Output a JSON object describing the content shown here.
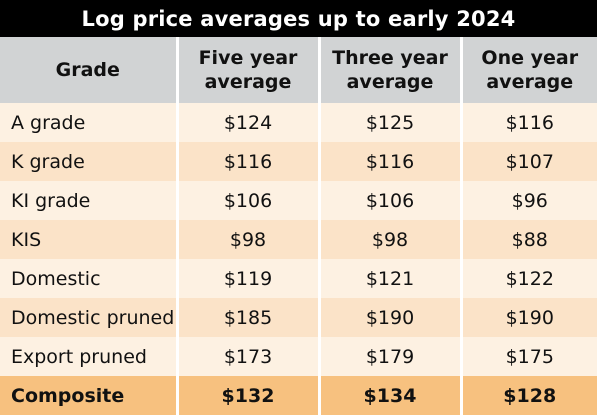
{
  "title": "Log price averages up to early 2024",
  "headers": [
    "Grade",
    "Five year average",
    "Three year average",
    "One year average"
  ],
  "rows": [
    [
      "A grade",
      "$124",
      "$125",
      "$116"
    ],
    [
      "K grade",
      "$116",
      "$116",
      "$107"
    ],
    [
      "KI grade",
      "$106",
      "$106",
      "$96"
    ],
    [
      "KIS",
      "$98",
      "$98",
      "$88"
    ],
    [
      "Domestic",
      "$119",
      "$121",
      "$122"
    ],
    [
      "Domestic pruned",
      "$185",
      "$190",
      "$190"
    ],
    [
      "Export pruned",
      "$173",
      "$179",
      "$175"
    ]
  ],
  "total": [
    "Composite",
    "$132",
    "$134",
    "$128"
  ],
  "colors": {
    "title_bg": "#000000",
    "header_bg": "#d1d3d4",
    "row_light": "#fdf1e2",
    "row_dark": "#fbe3c8",
    "total_bg": "#f7c17f"
  }
}
